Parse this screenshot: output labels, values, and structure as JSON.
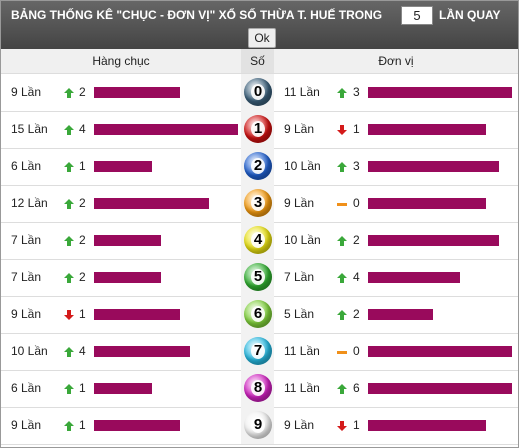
{
  "header": {
    "title": "BẢNG THỐNG KÊ \"CHỤC - ĐƠN VỊ\" XỔ SỐ THỪA T. HUẾ TRONG",
    "input_value": "5",
    "suffix": "LẦN QUAY",
    "button": "Ok"
  },
  "table": {
    "columns": [
      "Hàng chục",
      "Số",
      "Đơn vị"
    ],
    "rows": [
      {
        "tens": {
          "count": 9,
          "label": "9 Lần",
          "trend": "up",
          "change": 2
        },
        "digit": "0",
        "ball_color": "#3a5f7a",
        "units": {
          "count": 11,
          "label": "11 Lần",
          "trend": "up",
          "change": 3
        }
      },
      {
        "tens": {
          "count": 15,
          "label": "15 Lần",
          "trend": "up",
          "change": 4
        },
        "digit": "1",
        "ball_color": "#d01010",
        "units": {
          "count": 9,
          "label": "9 Lần",
          "trend": "down",
          "change": 1
        }
      },
      {
        "tens": {
          "count": 6,
          "label": "6 Lần",
          "trend": "up",
          "change": 1
        },
        "digit": "2",
        "ball_color": "#1f5fcf",
        "units": {
          "count": 10,
          "label": "10 Lần",
          "trend": "up",
          "change": 3
        }
      },
      {
        "tens": {
          "count": 12,
          "label": "12 Lần",
          "trend": "up",
          "change": 2
        },
        "digit": "3",
        "ball_color": "#f39a10",
        "units": {
          "count": 9,
          "label": "9 Lần",
          "trend": "same",
          "change": 0
        }
      },
      {
        "tens": {
          "count": 7,
          "label": "7 Lần",
          "trend": "up",
          "change": 2
        },
        "digit": "4",
        "ball_color": "#e8e010",
        "units": {
          "count": 10,
          "label": "10 Lần",
          "trend": "up",
          "change": 2
        }
      },
      {
        "tens": {
          "count": 7,
          "label": "7 Lần",
          "trend": "up",
          "change": 2
        },
        "digit": "5",
        "ball_color": "#2fae2f",
        "units": {
          "count": 7,
          "label": "7 Lần",
          "trend": "up",
          "change": 4
        }
      },
      {
        "tens": {
          "count": 9,
          "label": "9 Lần",
          "trend": "down",
          "change": 1
        },
        "digit": "6",
        "ball_color": "#7fd03a",
        "units": {
          "count": 5,
          "label": "5 Lần",
          "trend": "up",
          "change": 2
        }
      },
      {
        "tens": {
          "count": 10,
          "label": "10 Lần",
          "trend": "up",
          "change": 4
        },
        "digit": "7",
        "ball_color": "#25b8e0",
        "units": {
          "count": 11,
          "label": "11 Lần",
          "trend": "same",
          "change": 0
        }
      },
      {
        "tens": {
          "count": 6,
          "label": "6 Lần",
          "trend": "up",
          "change": 1
        },
        "digit": "8",
        "ball_color": "#d020c0",
        "units": {
          "count": 11,
          "label": "11 Lần",
          "trend": "up",
          "change": 6
        }
      },
      {
        "tens": {
          "count": 9,
          "label": "9 Lần",
          "trend": "up",
          "change": 1
        },
        "digit": "9",
        "ball_color": "#f2f2f2",
        "units": {
          "count": 9,
          "label": "9 Lần",
          "trend": "down",
          "change": 1
        }
      }
    ]
  }
}
